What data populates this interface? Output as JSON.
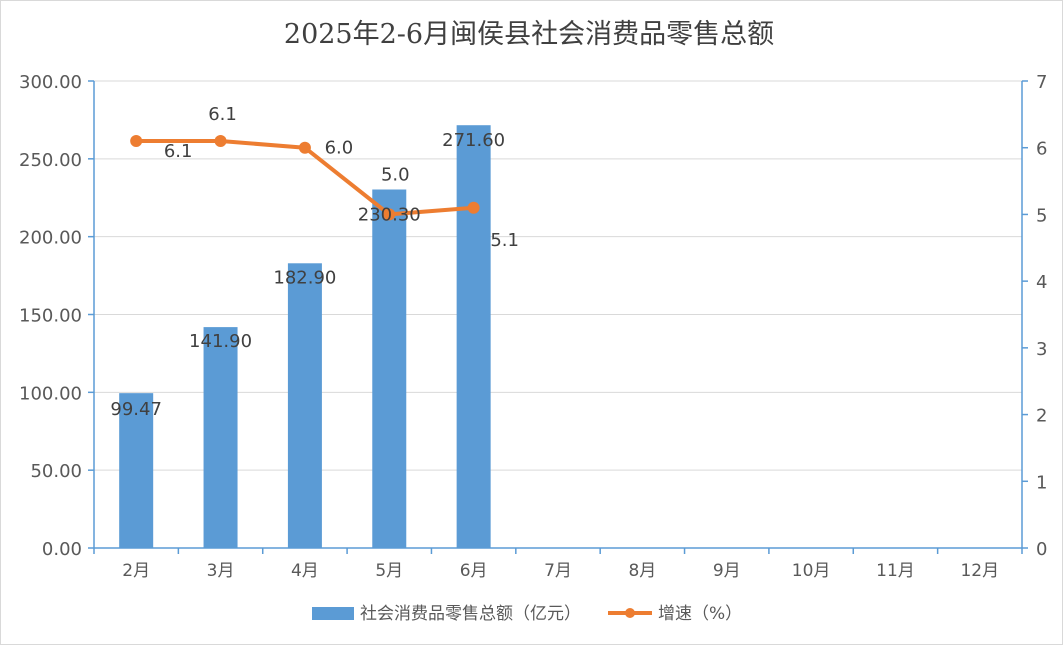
{
  "chart_data": {
    "type": "bar",
    "title": "2025年2-6月闽侯县社会消费品零售总额",
    "categories": [
      "2月",
      "3月",
      "4月",
      "5月",
      "6月",
      "7月",
      "8月",
      "9月",
      "10月",
      "11月",
      "12月"
    ],
    "series": [
      {
        "name": "社会消费品零售总额（亿元）",
        "type": "bar",
        "axis": "left",
        "color": "#5b9bd5",
        "values": [
          99.47,
          141.9,
          182.9,
          230.3,
          271.6,
          null,
          null,
          null,
          null,
          null,
          null
        ],
        "labels": [
          "99.47",
          "141.90",
          "182.90",
          "230.30",
          "271.60"
        ]
      },
      {
        "name": "增速（%）",
        "type": "line",
        "axis": "right",
        "color": "#ed7d31",
        "values": [
          6.1,
          6.1,
          6.0,
          5.0,
          5.1,
          null,
          null,
          null,
          null,
          null,
          null
        ],
        "labels": [
          "6.1",
          "6.1",
          "6.0",
          "5.0",
          "5.1"
        ]
      }
    ],
    "y_left": {
      "min": 0,
      "max": 300,
      "ticks": [
        "0.00",
        "50.00",
        "100.00",
        "150.00",
        "200.00",
        "250.00",
        "300.00"
      ]
    },
    "y_right": {
      "min": 0,
      "max": 7,
      "ticks": [
        "0",
        "1",
        "2",
        "3",
        "4",
        "5",
        "6",
        "7"
      ]
    },
    "grid": true,
    "legend_position": "bottom"
  }
}
